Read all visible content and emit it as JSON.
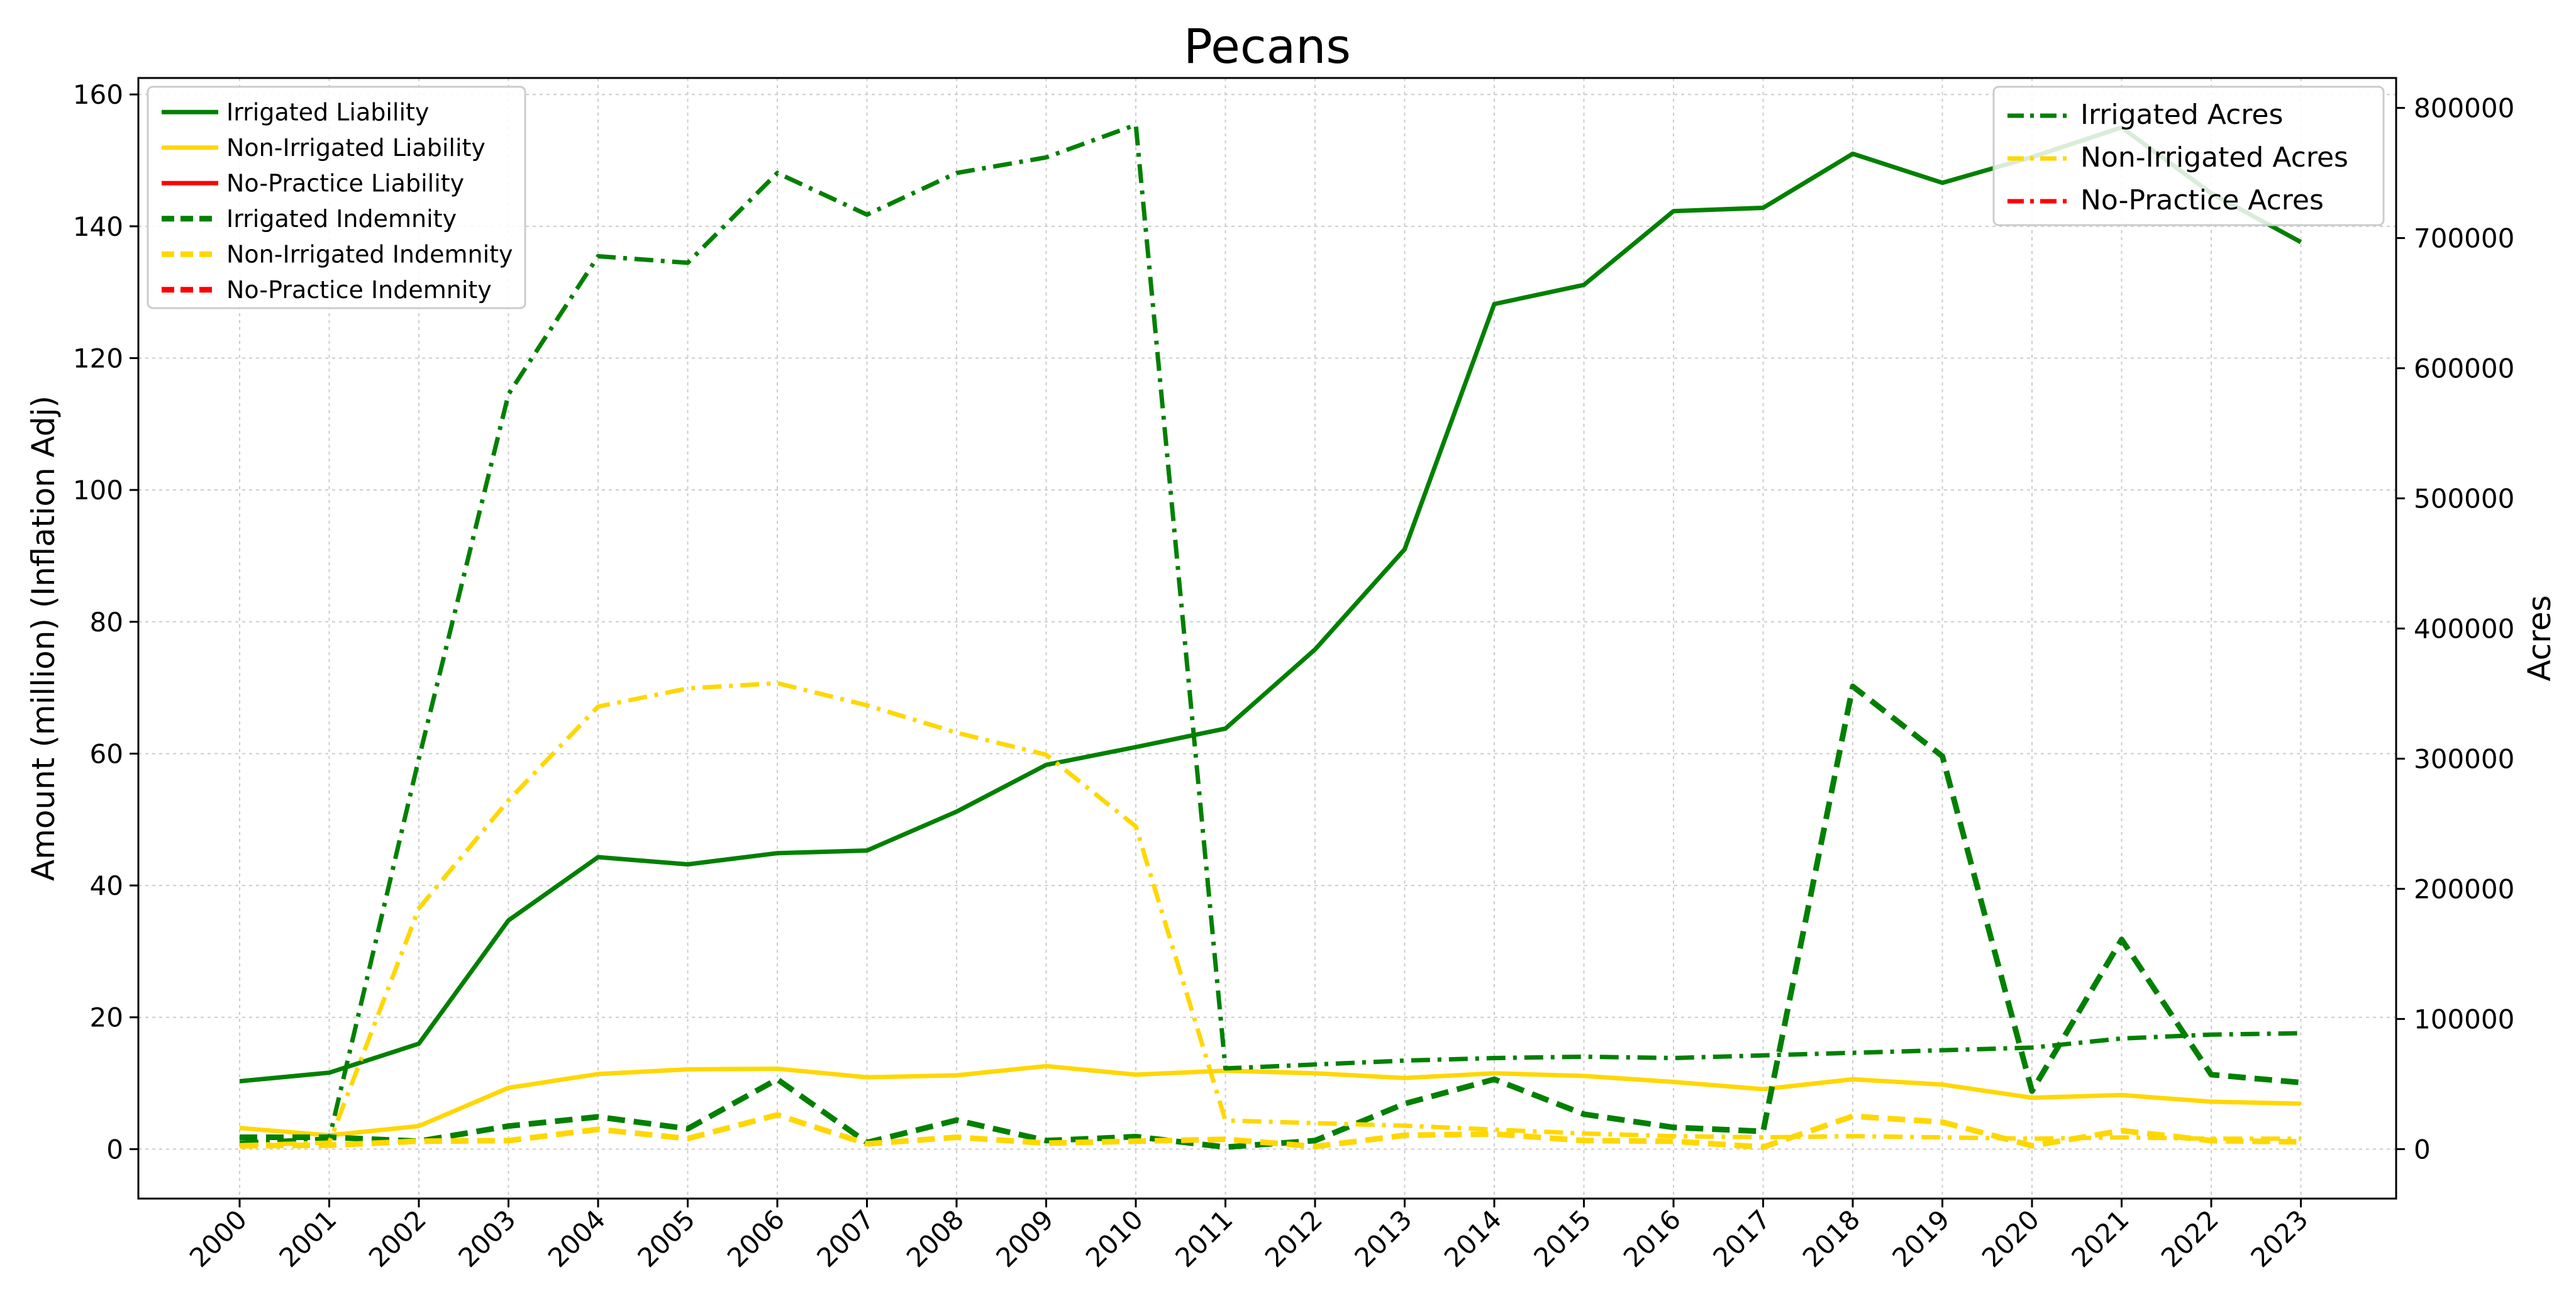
{
  "chart_data": {
    "type": "line",
    "title": "Pecans",
    "ylabel_left": "Amount (million) (Inflation Adj)",
    "ylabel_right": "Acres",
    "xlabel": "",
    "ylim_left": [
      -7.5,
      162.5
    ],
    "ylim_right": [
      -38000,
      823000
    ],
    "yticks_left": [
      0,
      20,
      40,
      60,
      80,
      100,
      120,
      140,
      160
    ],
    "yticks_right": [
      0,
      100000,
      200000,
      300000,
      400000,
      500000,
      600000,
      700000,
      800000
    ],
    "grid": true,
    "legend_left_position": "upper-left",
    "legend_right_position": "upper-right",
    "x": [
      "2000",
      "2001",
      "2002",
      "2003",
      "2004",
      "2005",
      "2006",
      "2007",
      "2008",
      "2009",
      "2010",
      "2011",
      "2012",
      "2013",
      "2014",
      "2015",
      "2016",
      "2017",
      "2018",
      "2019",
      "2020",
      "2021",
      "2022",
      "2023"
    ],
    "series_left": [
      {
        "name": "Irrigated Liability",
        "color": "#008000",
        "style": "solid",
        "values": [
          10.3,
          11.6,
          16,
          34.7,
          44.3,
          43.2,
          44.9,
          45.3,
          51.2,
          58.3,
          61,
          63.8,
          75.8,
          91,
          128.2,
          131.1,
          142.3,
          142.8,
          151,
          146.6,
          150.5,
          155,
          145,
          137.6
        ]
      },
      {
        "name": "Non-Irrigated Liability",
        "color": "#FFD700",
        "style": "solid",
        "values": [
          3.2,
          2.1,
          3.5,
          9.3,
          11.4,
          12.1,
          12.2,
          10.9,
          11.2,
          12.6,
          11.3,
          11.9,
          11.5,
          10.8,
          11.5,
          11.1,
          10.2,
          9.1,
          10.6,
          9.8,
          7.8,
          8.2,
          7.2,
          6.9
        ]
      },
      {
        "name": "No-Practice Liability",
        "color": "#FF0000",
        "style": "solid",
        "values": []
      },
      {
        "name": "Irrigated Indemnity",
        "color": "#008000",
        "style": "dashed",
        "values": [
          1.8,
          1.8,
          1.2,
          3.5,
          4.9,
          3.1,
          10.6,
          1,
          4.4,
          1.3,
          1.9,
          0.3,
          1.3,
          6.9,
          10.6,
          5.3,
          3.3,
          2.7,
          70.2,
          59.6,
          8.8,
          31.8,
          11.3,
          10.1
        ]
      },
      {
        "name": "Non-Irrigated Indemnity",
        "color": "#FFD700",
        "style": "dashed",
        "values": [
          0.5,
          0.6,
          1.2,
          1.3,
          3,
          1.6,
          5.2,
          0.8,
          1.8,
          0.9,
          1.2,
          1.5,
          0.4,
          2.1,
          2.3,
          1.3,
          1.2,
          0.3,
          5,
          4.1,
          0.5,
          2.8,
          1.3,
          1.1
        ]
      },
      {
        "name": "No-Practice Indemnity",
        "color": "#FF0000",
        "style": "dashed",
        "values": []
      }
    ],
    "series_right": [
      {
        "name": "Irrigated Acres",
        "color": "#008000",
        "style": "dashdot",
        "values": [
          5000,
          8000,
          300000,
          580000,
          686000,
          681000,
          750000,
          718000,
          750000,
          762000,
          787000,
          62000,
          65000,
          68000,
          70000,
          71000,
          70000,
          72000,
          74000,
          76000,
          78000,
          85000,
          88000,
          89000
        ]
      },
      {
        "name": "Non-Irrigated Acres",
        "color": "#FFD700",
        "style": "dashdot",
        "values": [
          3000,
          5000,
          185000,
          268000,
          340000,
          354000,
          358000,
          341000,
          320000,
          303000,
          248000,
          22000,
          20000,
          18000,
          15000,
          12000,
          10000,
          9000,
          10000,
          9000,
          8000,
          9000,
          8000,
          8000
        ]
      },
      {
        "name": "No-Practice Acres",
        "color": "#FF0000",
        "style": "dashdot",
        "values": []
      }
    ]
  }
}
